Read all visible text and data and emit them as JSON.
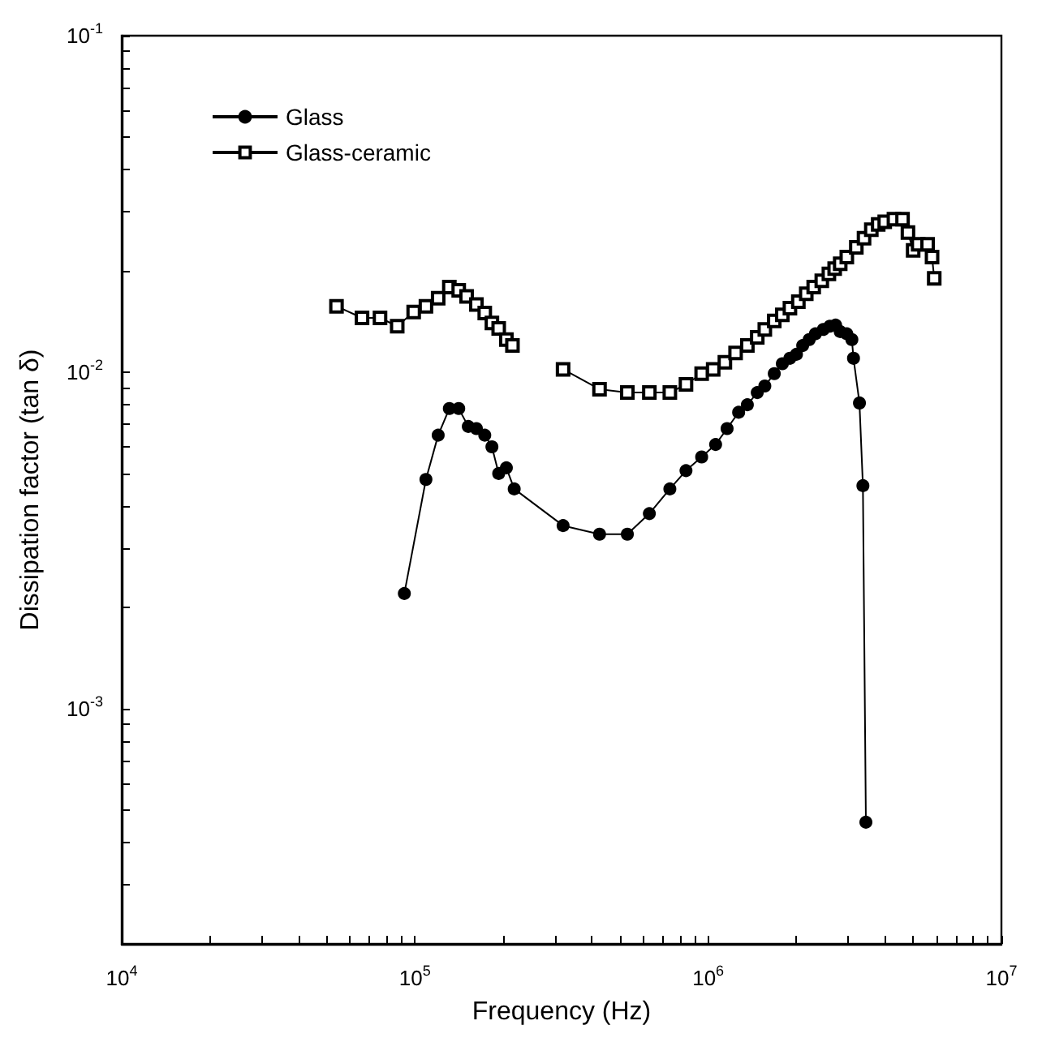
{
  "chart_data": {
    "type": "line",
    "xlabel": "Frequency (Hz)",
    "ylabel": "Dissipation factor (tan δ)",
    "log": "xy",
    "legend": "top left",
    "grid": false,
    "line_style": "solid",
    "xlim": [
      10000,
      10000000
    ],
    "ylim": [
      0.0002,
      0.1
    ],
    "xticks": [
      {
        "value": 10000,
        "label": "10$^{4}$"
      },
      {
        "value": 20000,
        "label": null
      },
      {
        "value": 30000,
        "label": null
      },
      {
        "value": 40000,
        "label": null
      },
      {
        "value": 50000,
        "label": null
      },
      {
        "value": 60000,
        "label": null
      },
      {
        "value": 70000,
        "label": null
      },
      {
        "value": 80000,
        "label": null
      },
      {
        "value": 90000,
        "label": null
      },
      {
        "value": 100000,
        "label": "10$^{5}$"
      },
      {
        "value": 200000,
        "label": null
      },
      {
        "value": 300000,
        "label": null
      },
      {
        "value": 400000,
        "label": null
      },
      {
        "value": 500000,
        "label": null
      },
      {
        "value": 600000,
        "label": null
      },
      {
        "value": 700000,
        "label": null
      },
      {
        "value": 800000,
        "label": null
      },
      {
        "value": 900000,
        "label": null
      },
      {
        "value": 1000000,
        "label": "10$^{6}$"
      },
      {
        "value": 2000000,
        "label": null
      },
      {
        "value": 3000000,
        "label": null
      },
      {
        "value": 4000000,
        "label": null
      },
      {
        "value": 5000000,
        "label": null
      },
      {
        "value": 6000000,
        "label": null
      },
      {
        "value": 7000000,
        "label": null
      },
      {
        "value": 8000000,
        "label": null
      },
      {
        "value": 9000000,
        "label": null
      },
      {
        "value": 10000000,
        "label": "10$^{7}$"
      }
    ],
    "yticks": [
      {
        "value": 0.0003,
        "label": null
      },
      {
        "value": 0.0004,
        "label": null
      },
      {
        "value": 0.0005,
        "label": null
      },
      {
        "value": 0.0006,
        "label": null
      },
      {
        "value": 0.0007,
        "label": null
      },
      {
        "value": 0.0008,
        "label": null
      },
      {
        "value": 0.0009,
        "label": null
      },
      {
        "value": 0.001,
        "label": "10$^{-3}$"
      },
      {
        "value": 0.002,
        "label": null
      },
      {
        "value": 0.003,
        "label": null
      },
      {
        "value": 0.004,
        "label": null
      },
      {
        "value": 0.005,
        "label": null
      },
      {
        "value": 0.006,
        "label": null
      },
      {
        "value": 0.007,
        "label": null
      },
      {
        "value": 0.008,
        "label": null
      },
      {
        "value": 0.009,
        "label": null
      },
      {
        "value": 0.01,
        "label": "10$^{-2}$"
      },
      {
        "value": 0.02,
        "label": null
      },
      {
        "value": 0.03,
        "label": null
      },
      {
        "value": 0.04,
        "label": null
      },
      {
        "value": 0.05,
        "label": null
      },
      {
        "value": 0.06,
        "label": null
      },
      {
        "value": 0.07,
        "label": null
      },
      {
        "value": 0.08,
        "label": null
      },
      {
        "value": 0.09,
        "label": null
      },
      {
        "value": 0.1,
        "label": "10$^{-1}$"
      }
    ],
    "series": [
      {
        "name": "Glass",
        "color": "#000000",
        "marker": "circle",
        "x": [
          92000,
          109000,
          120000,
          131000,
          141000,
          152000,
          162000,
          173000,
          183000,
          193000,
          205000,
          218000,
          320000,
          426000,
          530000,
          630000,
          740000,
          840000,
          950000,
          1060000,
          1160000,
          1270000,
          1360000,
          1470000,
          1560000,
          1680000,
          1790000,
          1900000,
          2000000,
          2100000,
          2210000,
          2320000,
          2470000,
          2600000,
          2720000,
          2820000,
          2970000,
          3090000,
          3130000,
          3280000,
          3370000,
          3450000
        ],
        "values": [
          0.0022,
          0.0048,
          0.0065,
          0.0078,
          0.0078,
          0.0069,
          0.0068,
          0.0065,
          0.006,
          0.005,
          0.0052,
          0.0045,
          0.0035,
          0.0033,
          0.0033,
          0.0038,
          0.0045,
          0.0051,
          0.0056,
          0.0061,
          0.0068,
          0.0076,
          0.008,
          0.0087,
          0.0091,
          0.0099,
          0.0106,
          0.011,
          0.0113,
          0.012,
          0.0125,
          0.013,
          0.0134,
          0.0137,
          0.0138,
          0.0132,
          0.013,
          0.0125,
          0.011,
          0.0081,
          0.0046,
          0.00046
        ]
      },
      {
        "name": "Glass-ceramic",
        "color": "#000000",
        "marker": "square",
        "x": [
          54000,
          66000,
          76000,
          87000,
          99000,
          109000,
          120000,
          131000,
          141000,
          150000,
          162000,
          173000,
          183000,
          193000,
          205000,
          215000,
          260000,
          320000,
          426000,
          530000,
          630000,
          740000,
          840000,
          950000,
          1040000,
          1140000,
          1240000,
          1360000,
          1470000,
          1560000,
          1680000,
          1790000,
          1900000,
          2030000,
          2160000,
          2290000,
          2440000,
          2580000,
          2700000,
          2820000,
          2970000,
          3200000,
          3400000,
          3600000,
          3800000,
          4000000,
          4300000,
          4600000,
          4800000,
          5000000,
          5200000,
          5600000,
          5800000,
          5900000
        ],
        "values": [
          0.0157,
          0.0145,
          0.0145,
          0.0137,
          0.0151,
          0.0157,
          0.0166,
          0.0179,
          0.0175,
          0.0168,
          0.0159,
          0.015,
          0.014,
          0.0135,
          0.0125,
          0.012,
          null,
          0.0102,
          0.0089,
          0.0087,
          0.0087,
          0.0087,
          0.0092,
          0.0099,
          0.0102,
          0.0107,
          0.0114,
          0.012,
          0.0127,
          0.0134,
          0.0142,
          0.0148,
          0.0155,
          0.0162,
          0.0171,
          0.0179,
          0.0187,
          0.0196,
          0.0203,
          0.021,
          0.022,
          0.0235,
          0.025,
          0.0265,
          0.0275,
          0.028,
          0.0285,
          0.0285,
          0.026,
          0.023,
          0.024,
          0.024,
          0.022,
          0.019
        ]
      }
    ]
  }
}
